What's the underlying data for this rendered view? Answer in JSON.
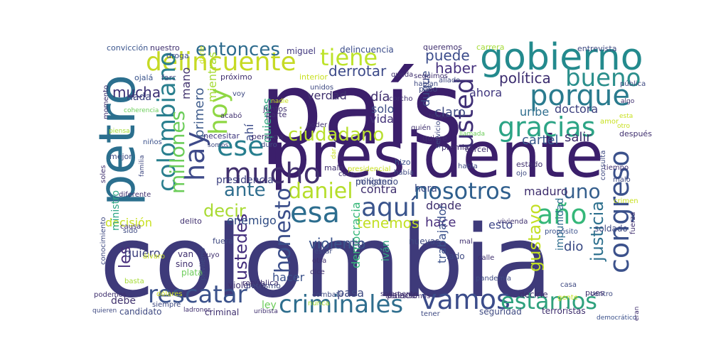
{
  "word_cloud": {
    "words": [
      {
        "text": "país",
        "color": "#3b1f6b"
      },
      {
        "text": "colombia",
        "color": "#3e3a7a"
      },
      {
        "text": "presidente",
        "color": "#3b1f6b"
      },
      {
        "text": "petro",
        "color": "#2b6f8e"
      },
      {
        "text": "gobierno",
        "color": "#238a8d"
      },
      {
        "text": "porque",
        "color": "#2a7b8e"
      },
      {
        "text": "gracias",
        "color": "#2ca485"
      },
      {
        "text": "delincuente",
        "color": "#c6da24"
      },
      {
        "text": "hoy",
        "color": "#8fd744"
      },
      {
        "text": "colombiano",
        "color": "#2a7f8e"
      },
      {
        "text": "hay",
        "color": "#3e4a89"
      },
      {
        "text": "ese",
        "color": "#277e8e"
      },
      {
        "text": "tiene",
        "color": "#bde32a"
      },
      {
        "text": "entonces",
        "color": "#2e6c8e"
      },
      {
        "text": "puede",
        "color": "#3b4c8b"
      },
      {
        "text": "bueno",
        "color": "#2b8f8c"
      },
      {
        "text": "mucho",
        "color": "#41306e"
      },
      {
        "text": "ciudadano",
        "color": "#b8df2f"
      },
      {
        "text": "usted",
        "color": "#3f2f76"
      },
      {
        "text": "aquí",
        "color": "#3a548c"
      },
      {
        "text": "esa",
        "color": "#2c6d8e"
      },
      {
        "text": "daniel",
        "color": "#b5de2b"
      },
      {
        "text": "ante",
        "color": "#2f6e8e"
      },
      {
        "text": "decir",
        "color": "#a9db33"
      },
      {
        "text": "nosotros",
        "color": "#2f5f8d"
      },
      {
        "text": "uno",
        "color": "#355f8d"
      },
      {
        "text": "año",
        "color": "#35b779"
      },
      {
        "text": "congreso",
        "color": "#3b518b"
      },
      {
        "text": "millones",
        "color": "#6ccd5a"
      },
      {
        "text": "rescatar",
        "color": "#3b528b"
      },
      {
        "text": "vamos",
        "color": "#3b4c8a"
      },
      {
        "text": "criminales",
        "color": "#2f6e8e"
      },
      {
        "text": "estamos",
        "color": "#2ea17d"
      },
      {
        "text": "honesto",
        "color": "#3b4e8a"
      },
      {
        "text": "ustedes",
        "color": "#432d7c"
      },
      {
        "text": "gustavo",
        "color": "#c2df23"
      },
      {
        "text": "justicia",
        "color": "#2d708e"
      },
      {
        "text": "derrotar",
        "color": "#3d4a89"
      },
      {
        "text": "haber",
        "color": "#46327e"
      },
      {
        "text": "política",
        "color": "#3a2b6e"
      },
      {
        "text": "mucha",
        "color": "#3a2e73"
      },
      {
        "text": "mano",
        "color": "#44356f"
      },
      {
        "text": "primero",
        "color": "#3f5c8c"
      },
      {
        "text": "mientras",
        "color": "#a5db36"
      },
      {
        "text": "quienes",
        "color": "#36a983"
      },
      {
        "text": "ahí",
        "color": "#3a4a88"
      },
      {
        "text": "nada",
        "color": "#3c437f"
      },
      {
        "text": "verdad",
        "color": "#41326e"
      },
      {
        "text": "día",
        "color": "#3f2e6d"
      },
      {
        "text": "solo",
        "color": "#3f5088"
      },
      {
        "text": "vida",
        "color": "#433179"
      },
      {
        "text": "duque",
        "color": "#3c4b85"
      },
      {
        "text": "claro",
        "color": "#3f4a82"
      },
      {
        "text": "uribe",
        "color": "#2f6e8e"
      },
      {
        "text": "ahora",
        "color": "#40377e"
      },
      {
        "text": "doctora",
        "color": "#3b3f7d"
      },
      {
        "text": "salir",
        "color": "#3f2f6e"
      },
      {
        "text": "cartel",
        "color": "#375a8c"
      },
      {
        "text": "presidencia",
        "color": "#3b3f7f"
      },
      {
        "text": "enemigo",
        "color": "#2f4b83"
      },
      {
        "text": "decisión",
        "color": "#c8e020"
      },
      {
        "text": "les",
        "color": "#472d7b"
      },
      {
        "text": "quiero",
        "color": "#3b3f7d"
      },
      {
        "text": "violento",
        "color": "#3a548c"
      },
      {
        "text": "tenemos",
        "color": "#c2df23"
      },
      {
        "text": "hace",
        "color": "#472d7b"
      },
      {
        "text": "esto",
        "color": "#3f4788"
      },
      {
        "text": "dio",
        "color": "#3a4a84"
      },
      {
        "text": "contra",
        "color": "#3f2f6e"
      },
      {
        "text": "hora",
        "color": "#3c4b85"
      },
      {
        "text": "donde",
        "color": "#3f2f6e"
      },
      {
        "text": "maduro",
        "color": "#3f2f6e"
      },
      {
        "text": "impunidad",
        "color": "#2f6e8e"
      },
      {
        "text": "trabajador",
        "color": "#3b518b"
      },
      {
        "text": "democracia",
        "color": "#35b779"
      },
      {
        "text": "iván",
        "color": "#35a883"
      },
      {
        "text": "hacer",
        "color": "#3b518b"
      },
      {
        "text": "pasa",
        "color": "#3f4a82"
      },
      {
        "text": "ley",
        "color": "#6ccd5a"
      },
      {
        "text": "debe",
        "color": "#41336e"
      },
      {
        "text": "candidato",
        "color": "#3f4a82"
      },
      {
        "text": "criminal",
        "color": "#3f2f6e"
      },
      {
        "text": "palacio",
        "color": "#3f2f6e"
      },
      {
        "text": "seguridad",
        "color": "#3f4a82"
      },
      {
        "text": "terroristas",
        "color": "#3f2f6e"
      },
      {
        "text": "ministro",
        "color": "#2ca485"
      },
      {
        "text": "delincuencia",
        "color": "#3b4c8a"
      },
      {
        "text": "miguel",
        "color": "#40377e"
      },
      {
        "text": "convicción",
        "color": "#3a548c"
      },
      {
        "text": "nuestro",
        "color": "#3f2f6e"
      },
      {
        "text": "queremos",
        "color": "#3f2f6e"
      },
      {
        "text": "carrera",
        "color": "#a5db36"
      },
      {
        "text": "entrevista",
        "color": "#3f4a82"
      },
      {
        "text": "droga",
        "color": "#3b4c8a"
      },
      {
        "text": "farc",
        "color": "#3f4a82"
      },
      {
        "text": "ojalá",
        "color": "#3a548c"
      },
      {
        "text": "próximo",
        "color": "#3f2f6e"
      },
      {
        "text": "interior",
        "color": "#c8e020"
      },
      {
        "text": "momento",
        "color": "#3f2f6e"
      },
      {
        "text": "coherencia",
        "color": "#6ccd5a"
      },
      {
        "text": "piensa",
        "color": "#a5db36"
      },
      {
        "text": "niños",
        "color": "#3b518b"
      },
      {
        "text": "necesitar",
        "color": "#40377e"
      },
      {
        "text": "persona",
        "color": "#3f2f6e"
      },
      {
        "text": "poder",
        "color": "#3f2f6e"
      },
      {
        "text": "duro",
        "color": "#3f4a82"
      },
      {
        "text": "quiere",
        "color": "#3f2f6e"
      },
      {
        "text": "premia",
        "color": "#3f2f6e"
      },
      {
        "text": "cárcel",
        "color": "#3f2f6e"
      },
      {
        "text": "después",
        "color": "#3f2f6e"
      },
      {
        "text": "hizo",
        "color": "#3b518b"
      },
      {
        "text": "tiempo",
        "color": "#3f2f6e"
      },
      {
        "text": "malo",
        "color": "#3f4a82"
      },
      {
        "text": "mejor",
        "color": "#3f4a82"
      },
      {
        "text": "mala",
        "color": "#3f2f6e"
      },
      {
        "text": "cosa",
        "color": "#3f2f6e"
      },
      {
        "text": "había",
        "color": "#3f4a82"
      },
      {
        "text": "ojo",
        "color": "#3f4a82"
      },
      {
        "text": "soldado",
        "color": "#3f4a82"
      },
      {
        "text": "fuerza",
        "color": "#3f2f6e"
      },
      {
        "text": "propósito",
        "color": "#3b518b"
      },
      {
        "text": "vivienda",
        "color": "#3f2f6e"
      },
      {
        "text": "mal",
        "color": "#3f2f6e"
      },
      {
        "text": "lado",
        "color": "#3f4a82"
      },
      {
        "text": "calle",
        "color": "#3f2f6e"
      },
      {
        "text": "pandemia",
        "color": "#3f4a82"
      },
      {
        "text": "casa",
        "color": "#3f4a82"
      },
      {
        "text": "gente",
        "color": "#c8e020"
      },
      {
        "text": "centro",
        "color": "#3f4a82"
      },
      {
        "text": "pues",
        "color": "#3f2f6e"
      },
      {
        "text": "decirle",
        "color": "#3f2f6e"
      },
      {
        "text": "dólares",
        "color": "#c8e020"
      },
      {
        "text": "podemos",
        "color": "#3f2f6e"
      },
      {
        "text": "quieren",
        "color": "#3f4a82"
      },
      {
        "text": "siempre",
        "color": "#3f4a82"
      },
      {
        "text": "ladrones",
        "color": "#3f2f6e"
      },
      {
        "text": "uribista",
        "color": "#3f2f6e"
      },
      {
        "text": "combatir",
        "color": "#3f4a82"
      },
      {
        "text": "nunca",
        "color": "#a5db36"
      },
      {
        "text": "solamente",
        "color": "#3f2f6e"
      },
      {
        "text": "necesitamos",
        "color": "#3f2f6e"
      },
      {
        "text": "tener",
        "color": "#3f4a82"
      },
      {
        "text": "democrático",
        "color": "#3b518b"
      },
      {
        "text": "van",
        "color": "#3f2f6e"
      },
      {
        "text": "sino",
        "color": "#3f2f6e"
      },
      {
        "text": "plata",
        "color": "#6ccd5a"
      },
      {
        "text": "violencia",
        "color": "#3f2f6e"
      },
      {
        "text": "república",
        "color": "#3f2f6e"
      },
      {
        "text": "privilegio",
        "color": "#3f4a82"
      },
      {
        "text": "petrismo",
        "color": "#3f4a82"
      },
      {
        "text": "estar",
        "color": "#3f4a82"
      },
      {
        "text": "otra",
        "color": "#3f2f6e"
      },
      {
        "text": "dice",
        "color": "#3f2f6e"
      },
      {
        "text": "delito",
        "color": "#3f2f6e"
      },
      {
        "text": "álvaro",
        "color": "#c8e020"
      },
      {
        "text": "sido",
        "color": "#3f4a82"
      },
      {
        "text": "diferente",
        "color": "#3f2f6e"
      },
      {
        "text": "causa",
        "color": "#3f2f6e"
      },
      {
        "text": "basta",
        "color": "#a5db36"
      },
      {
        "text": "conocimiento",
        "color": "#3f4a82"
      },
      {
        "text": "nadie",
        "color": "#c8e020"
      },
      {
        "text": "juntos",
        "color": "#3f2f6e"
      },
      {
        "text": "parte",
        "color": "#3f2f6e"
      },
      {
        "text": "acabó",
        "color": "#3f2f6e"
      },
      {
        "text": "voy",
        "color": "#3f4a82"
      },
      {
        "text": "somos",
        "color": "#3f4a82"
      },
      {
        "text": "tenga",
        "color": "#3f2f6e"
      },
      {
        "text": "quién",
        "color": "#3f2f6e"
      },
      {
        "text": "corcho",
        "color": "#3f2f6e"
      },
      {
        "text": "hablan",
        "color": "#3f4a82"
      },
      {
        "text": "queda",
        "color": "#3f2f6e"
      },
      {
        "text": "seguimos",
        "color": "#3f2f6e"
      },
      {
        "text": "paso",
        "color": "#3f4a82"
      },
      {
        "text": "aliado",
        "color": "#3f4a82"
      },
      {
        "text": "pública",
        "color": "#3f4a82"
      },
      {
        "text": "algo",
        "color": "#3f2f6e"
      },
      {
        "text": "amor",
        "color": "#c8e020"
      },
      {
        "text": "esta",
        "color": "#c8e020"
      },
      {
        "text": "otro",
        "color": "#c8e020"
      },
      {
        "text": "llamada",
        "color": "#6ccd5a"
      },
      {
        "text": "unidos",
        "color": "#3f4a82"
      },
      {
        "text": "fuera",
        "color": "#3f4a82"
      },
      {
        "text": "suyo",
        "color": "#3f2f6e"
      },
      {
        "text": "estado",
        "color": "#3f2f6e"
      },
      {
        "text": "crimen",
        "color": "#c8e020"
      },
      {
        "text": "soles",
        "color": "#3f2f6e"
      },
      {
        "text": "familia",
        "color": "#3f4a82"
      },
      {
        "text": "consulta",
        "color": "#3f4a82"
      },
      {
        "text": "presidencial",
        "color": "#c8e020"
      },
      {
        "text": "servicio",
        "color": "#3f4a82"
      },
      {
        "text": "habla",
        "color": "#3f4a82"
      },
      {
        "text": "creo",
        "color": "#3f4a82"
      },
      {
        "text": "nuevas",
        "color": "#3f4a82"
      },
      {
        "text": "dar",
        "color": "#c8e020"
      },
      {
        "text": "darle",
        "color": "#c8e020"
      },
      {
        "text": "eran",
        "color": "#3f2f6e"
      },
      {
        "text": "ministerio",
        "color": "#3f4a82"
      },
      {
        "text": "polígono",
        "color": "#3f4a82"
      }
    ]
  }
}
